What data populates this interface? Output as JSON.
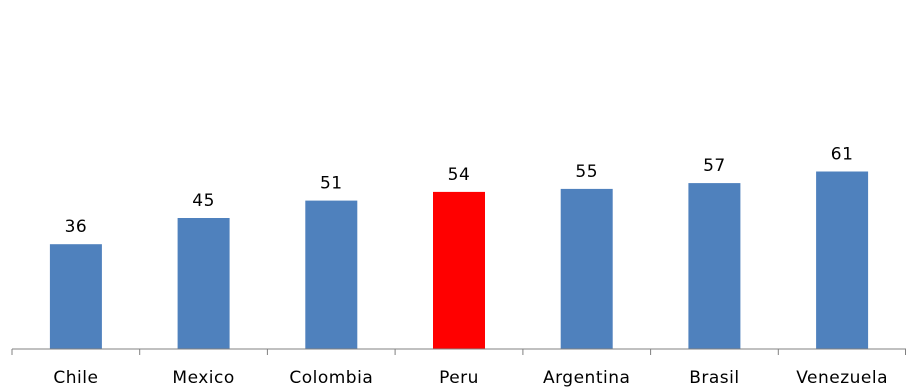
{
  "chart_data": {
    "type": "bar",
    "categories": [
      "Chile",
      "Mexico",
      "Colombia",
      "Peru",
      "Argentina",
      "Brasil",
      "Venezuela"
    ],
    "values": [
      36,
      45,
      51,
      54,
      55,
      57,
      61
    ],
    "title": "",
    "xlabel": "",
    "ylabel": "",
    "ylim": [
      0,
      70
    ],
    "grid": false,
    "legend": "none",
    "colors": {
      "default": "#4f81bd",
      "highlight": "#ff0000",
      "axis": "#808080"
    },
    "highlight_category": "Peru"
  }
}
